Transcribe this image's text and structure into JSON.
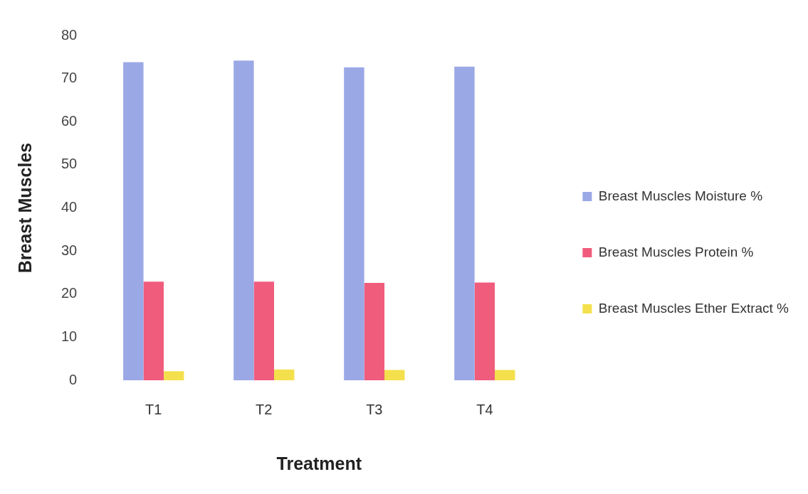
{
  "chart_data": {
    "type": "bar",
    "xlabel": "Treatment",
    "ylabel": "Breast Muscles",
    "categories": [
      "T1",
      "T2",
      "T3",
      "T4"
    ],
    "series": [
      {
        "name": "Breast Muscles Moisture %",
        "color": "#9aa8e6",
        "values": [
          73.8,
          74.2,
          72.6,
          72.8
        ]
      },
      {
        "name": "Breast Muscles Protein %",
        "color": "#f05c7c",
        "values": [
          22.9,
          22.9,
          22.6,
          22.7
        ]
      },
      {
        "name": "Breast Muscles Ether Extract %",
        "color": "#f4e04c",
        "values": [
          2.1,
          2.5,
          2.4,
          2.4
        ]
      }
    ],
    "ylim": [
      0,
      80
    ],
    "yticks": [
      0,
      10,
      20,
      30,
      40,
      50,
      60,
      70,
      80
    ],
    "grid": false,
    "legend": "right"
  }
}
